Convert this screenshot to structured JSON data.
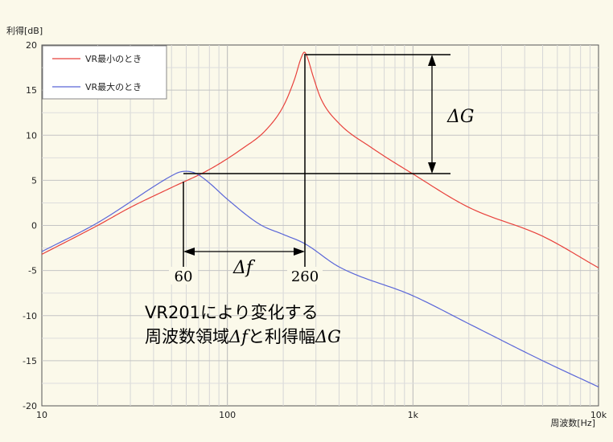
{
  "chart_data": {
    "type": "line",
    "ylabel": "利得[dB]",
    "xlabel": "周波数[Hz]",
    "xscale": "log",
    "xlim": [
      10,
      10000
    ],
    "ylim": [
      -20,
      20
    ],
    "x_ticks": [
      "10",
      "100",
      "1k",
      "10k"
    ],
    "y_ticks": [
      "20",
      "15",
      "10",
      "5",
      "0",
      "-5",
      "-10",
      "-15",
      "-20"
    ],
    "grid": true,
    "legend_position": "top-left",
    "series": [
      {
        "name": "VR最小のとき",
        "color": "#e8413c",
        "x": [
          10,
          20,
          30,
          50,
          80,
          120,
          160,
          200,
          230,
          250,
          260,
          270,
          290,
          320,
          400,
          600,
          1000,
          2000,
          5000,
          10000
        ],
        "y": [
          -3.2,
          0.0,
          2.0,
          4.2,
          6.2,
          8.5,
          10.5,
          13.2,
          16.2,
          18.6,
          19.2,
          18.6,
          16.5,
          14.0,
          11.3,
          8.6,
          5.7,
          2.0,
          -1.2,
          -4.7
        ]
      },
      {
        "name": "VR最大のとき",
        "color": "#5a66d8",
        "x": [
          10,
          20,
          30,
          40,
          50,
          55,
          60,
          65,
          70,
          80,
          100,
          150,
          200,
          260,
          400,
          1000,
          2000,
          5000,
          10000
        ],
        "y": [
          -2.9,
          0.3,
          2.6,
          4.3,
          5.5,
          5.9,
          6.0,
          5.9,
          5.6,
          4.7,
          2.9,
          0.1,
          -1.0,
          -2.0,
          -4.6,
          -7.8,
          -10.9,
          -15.0,
          -17.9
        ]
      }
    ],
    "annotations": {
      "freq_low": "60",
      "freq_high": "260",
      "delta_f": "Δf",
      "delta_g": "ΔG",
      "note_line1": "VR201により変化する",
      "note_line2_prefix": "周波数領域",
      "note_line2_df": "Δf",
      "note_line2_mid": "と利得幅",
      "note_line2_dg": "ΔG"
    }
  }
}
